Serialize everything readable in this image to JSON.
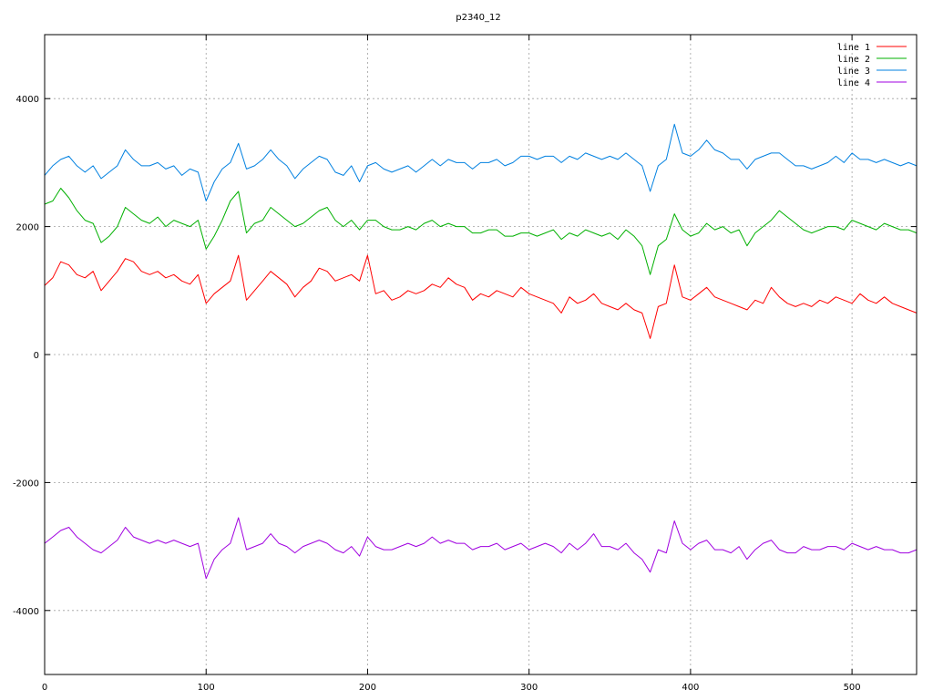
{
  "chart_data": {
    "type": "line",
    "title": "p2340_12",
    "xlabel": "",
    "ylabel": "",
    "xlim": [
      0,
      540
    ],
    "ylim": [
      -5000,
      5000
    ],
    "x_ticks": [
      0,
      100,
      200,
      300,
      400,
      500
    ],
    "y_ticks": [
      -4000,
      -2000,
      0,
      2000,
      4000
    ],
    "grid": true,
    "legend_position": "top-right",
    "x": [
      0,
      5,
      10,
      15,
      20,
      25,
      30,
      35,
      40,
      45,
      50,
      55,
      60,
      65,
      70,
      75,
      80,
      85,
      90,
      95,
      100,
      105,
      110,
      115,
      120,
      125,
      130,
      135,
      140,
      145,
      150,
      155,
      160,
      165,
      170,
      175,
      180,
      185,
      190,
      195,
      200,
      205,
      210,
      215,
      220,
      225,
      230,
      235,
      240,
      245,
      250,
      255,
      260,
      265,
      270,
      275,
      280,
      285,
      290,
      295,
      300,
      305,
      310,
      315,
      320,
      325,
      330,
      335,
      340,
      345,
      350,
      355,
      360,
      365,
      370,
      375,
      380,
      385,
      390,
      395,
      400,
      405,
      410,
      415,
      420,
      425,
      430,
      435,
      440,
      445,
      450,
      455,
      460,
      465,
      470,
      475,
      480,
      485,
      490,
      495,
      500,
      505,
      510,
      515,
      520,
      525,
      530,
      535,
      540
    ],
    "series": [
      {
        "name": "line 1",
        "color": "#ff0000",
        "values": [
          1080,
          1200,
          1450,
          1400,
          1250,
          1200,
          1300,
          1000,
          1150,
          1300,
          1500,
          1450,
          1300,
          1250,
          1300,
          1200,
          1250,
          1150,
          1100,
          1250,
          800,
          950,
          1050,
          1150,
          1550,
          850,
          1000,
          1150,
          1300,
          1200,
          1100,
          900,
          1050,
          1150,
          1350,
          1300,
          1150,
          1200,
          1250,
          1150,
          1550,
          950,
          1000,
          850,
          900,
          1000,
          950,
          1000,
          1100,
          1050,
          1200,
          1100,
          1050,
          850,
          950,
          900,
          1000,
          950,
          900,
          1050,
          950,
          900,
          850,
          800,
          650,
          900,
          800,
          850,
          950,
          800,
          750,
          700,
          800,
          700,
          650,
          250,
          750,
          800,
          1400,
          900,
          850,
          950,
          1050,
          900,
          850,
          800,
          750,
          700,
          850,
          800,
          1050,
          900,
          800,
          750,
          800,
          750,
          850,
          800,
          900,
          850,
          800,
          950,
          850,
          800,
          900,
          800,
          750,
          700,
          650
        ]
      },
      {
        "name": "line 2",
        "color": "#00b000",
        "values": [
          2350,
          2400,
          2600,
          2450,
          2250,
          2100,
          2050,
          1750,
          1850,
          2000,
          2300,
          2200,
          2100,
          2050,
          2150,
          2000,
          2100,
          2050,
          2000,
          2100,
          1650,
          1850,
          2100,
          2400,
          2550,
          1900,
          2050,
          2100,
          2300,
          2200,
          2100,
          2000,
          2050,
          2150,
          2250,
          2300,
          2100,
          2000,
          2100,
          1950,
          2100,
          2100,
          2000,
          1950,
          1950,
          2000,
          1950,
          2050,
          2100,
          2000,
          2050,
          2000,
          2000,
          1900,
          1900,
          1950,
          1950,
          1850,
          1850,
          1900,
          1900,
          1850,
          1900,
          1950,
          1800,
          1900,
          1850,
          1950,
          1900,
          1850,
          1900,
          1800,
          1950,
          1850,
          1700,
          1250,
          1700,
          1800,
          2200,
          1950,
          1850,
          1900,
          2050,
          1950,
          2000,
          1900,
          1950,
          1700,
          1900,
          2000,
          2100,
          2250,
          2150,
          2050,
          1950,
          1900,
          1950,
          2000,
          2000,
          1950,
          2100,
          2050,
          2000,
          1950,
          2050,
          2000,
          1950,
          1950,
          1900
        ]
      },
      {
        "name": "line 3",
        "color": "#0080e0",
        "values": [
          2800,
          2950,
          3050,
          3100,
          2950,
          2850,
          2950,
          2750,
          2850,
          2950,
          3200,
          3050,
          2950,
          2950,
          3000,
          2900,
          2950,
          2800,
          2900,
          2850,
          2400,
          2700,
          2900,
          3000,
          3300,
          2900,
          2950,
          3050,
          3200,
          3050,
          2950,
          2750,
          2900,
          3000,
          3100,
          3050,
          2850,
          2800,
          2950,
          2700,
          2950,
          3000,
          2900,
          2850,
          2900,
          2950,
          2850,
          2950,
          3050,
          2950,
          3050,
          3000,
          3000,
          2900,
          3000,
          3000,
          3050,
          2950,
          3000,
          3100,
          3100,
          3050,
          3100,
          3100,
          3000,
          3100,
          3050,
          3150,
          3100,
          3050,
          3100,
          3050,
          3150,
          3050,
          2950,
          2550,
          2950,
          3050,
          3600,
          3150,
          3100,
          3200,
          3350,
          3200,
          3150,
          3050,
          3050,
          2900,
          3050,
          3100,
          3150,
          3150,
          3050,
          2950,
          2950,
          2900,
          2950,
          3000,
          3100,
          3000,
          3150,
          3050,
          3050,
          3000,
          3050,
          3000,
          2950,
          3000,
          2950
        ]
      },
      {
        "name": "line 4",
        "color": "#a000e0",
        "values": [
          -2950,
          -2850,
          -2750,
          -2700,
          -2850,
          -2950,
          -3050,
          -3100,
          -3000,
          -2900,
          -2700,
          -2850,
          -2900,
          -2950,
          -2900,
          -2950,
          -2900,
          -2950,
          -3000,
          -2950,
          -3500,
          -3200,
          -3050,
          -2950,
          -2550,
          -3050,
          -3000,
          -2950,
          -2800,
          -2950,
          -3000,
          -3100,
          -3000,
          -2950,
          -2900,
          -2950,
          -3050,
          -3100,
          -3000,
          -3150,
          -2850,
          -3000,
          -3050,
          -3050,
          -3000,
          -2950,
          -3000,
          -2950,
          -2850,
          -2950,
          -2900,
          -2950,
          -2950,
          -3050,
          -3000,
          -3000,
          -2950,
          -3050,
          -3000,
          -2950,
          -3050,
          -3000,
          -2950,
          -3000,
          -3100,
          -2950,
          -3050,
          -2950,
          -2800,
          -3000,
          -3000,
          -3050,
          -2950,
          -3100,
          -3200,
          -3400,
          -3050,
          -3100,
          -2600,
          -2950,
          -3050,
          -2950,
          -2900,
          -3050,
          -3050,
          -3100,
          -3000,
          -3200,
          -3050,
          -2950,
          -2900,
          -3050,
          -3100,
          -3100,
          -3000,
          -3050,
          -3050,
          -3000,
          -3000,
          -3050,
          -2950,
          -3000,
          -3050,
          -3000,
          -3050,
          -3050,
          -3100,
          -3100,
          -3050
        ]
      }
    ]
  }
}
